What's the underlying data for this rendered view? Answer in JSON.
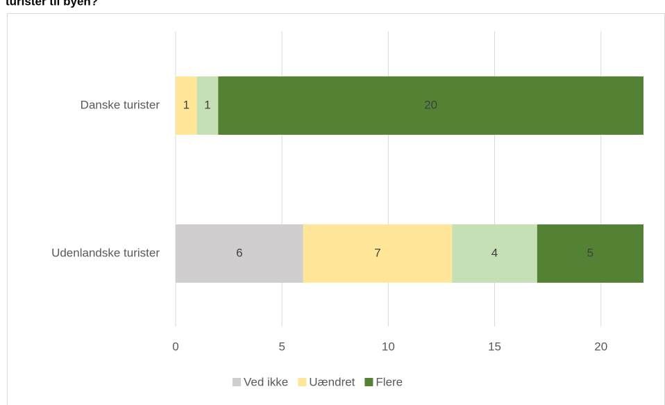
{
  "chart_data": {
    "type": "stacked-bar-horizontal",
    "title": "turister til byen?",
    "categories": [
      "Danske turister",
      "Udenlandske turister"
    ],
    "series": [
      {
        "name": "Ved ikke",
        "color": "#d0cece",
        "values": [
          0,
          6
        ]
      },
      {
        "name": "Uændret",
        "color": "#ffe699",
        "values": [
          1,
          7
        ]
      },
      {
        "name": null,
        "color": "#c5e0b4",
        "values": [
          1,
          4
        ]
      },
      {
        "name": "Flere",
        "color": "#548235",
        "values": [
          20,
          5
        ]
      }
    ],
    "xlim": [
      0,
      22
    ],
    "xticks": [
      0,
      5,
      10,
      15,
      20
    ],
    "grid": true
  }
}
